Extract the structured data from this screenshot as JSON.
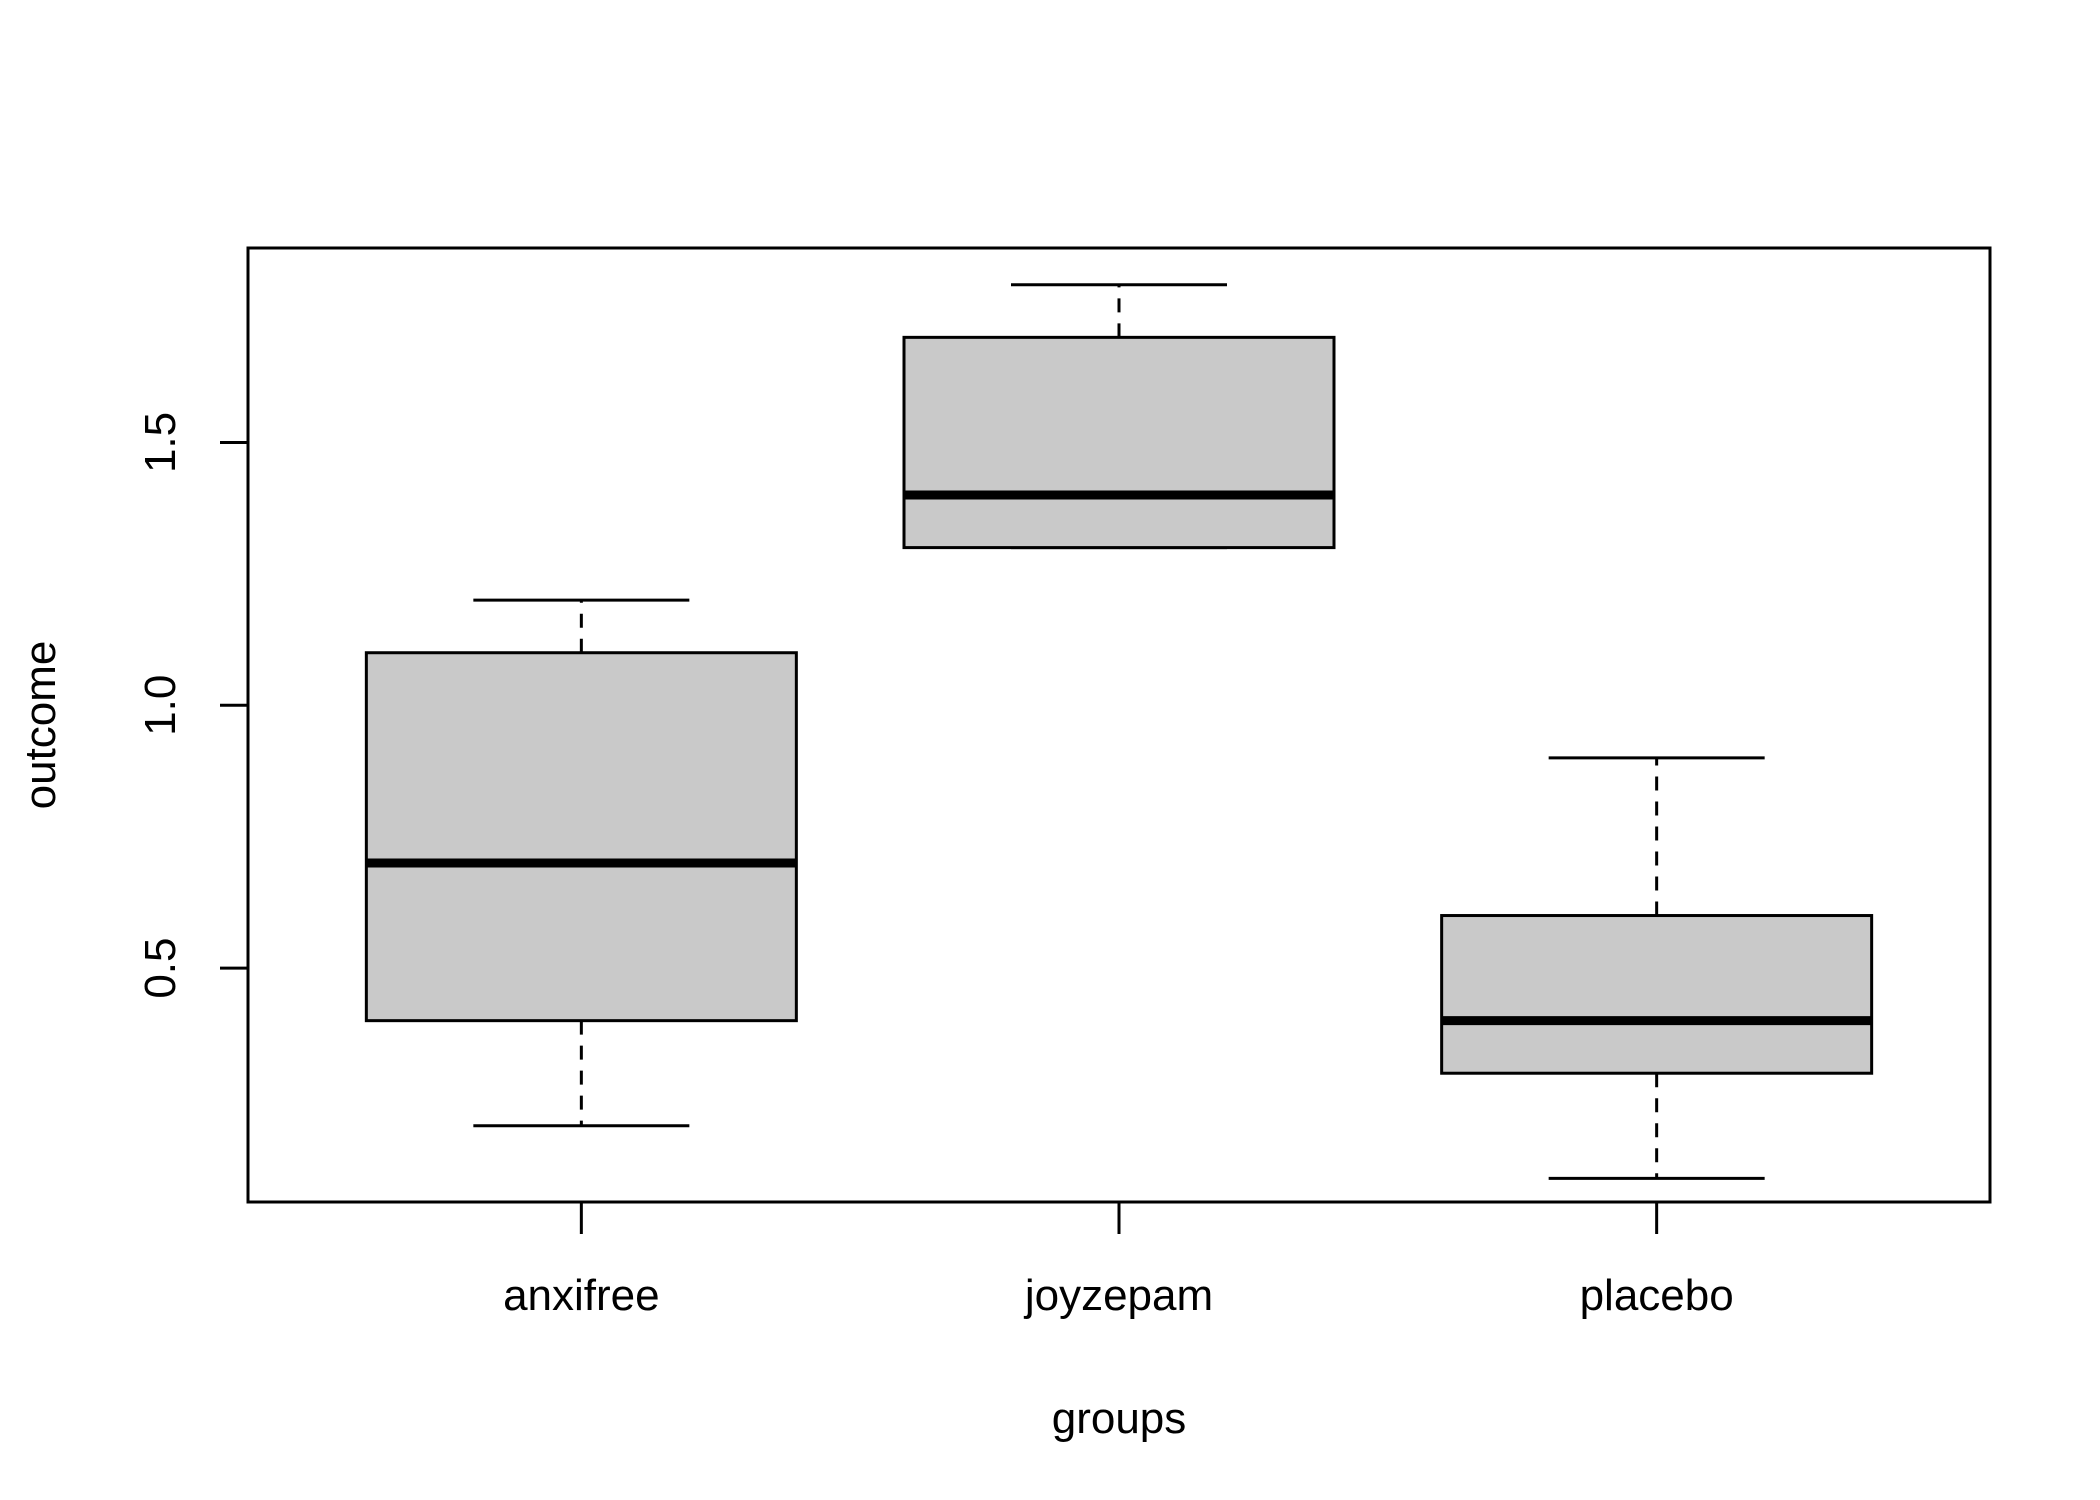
{
  "chart_data": {
    "type": "boxplot",
    "title": "",
    "xlabel": "groups",
    "ylabel": "outcome",
    "categories": [
      "anxifree",
      "joyzepam",
      "placebo"
    ],
    "boxes": [
      {
        "category": "anxifree",
        "whisker_low": 0.2,
        "q1": 0.4,
        "median": 0.7,
        "q3": 1.1,
        "whisker_high": 1.2
      },
      {
        "category": "joyzepam",
        "whisker_low": 1.3,
        "q1": 1.3,
        "median": 1.4,
        "q3": 1.7,
        "whisker_high": 1.8
      },
      {
        "category": "placebo",
        "whisker_low": 0.1,
        "q1": 0.3,
        "median": 0.4,
        "q3": 0.6,
        "whisker_high": 0.9
      }
    ],
    "yticks": [
      0.5,
      1.0,
      1.5
    ],
    "ytick_labels": [
      "0.5",
      "1.0",
      "1.5"
    ],
    "ylim": [
      0.055,
      1.87
    ],
    "grid": false,
    "box_fill": "#c9c9c9",
    "line_color": "#000000"
  }
}
